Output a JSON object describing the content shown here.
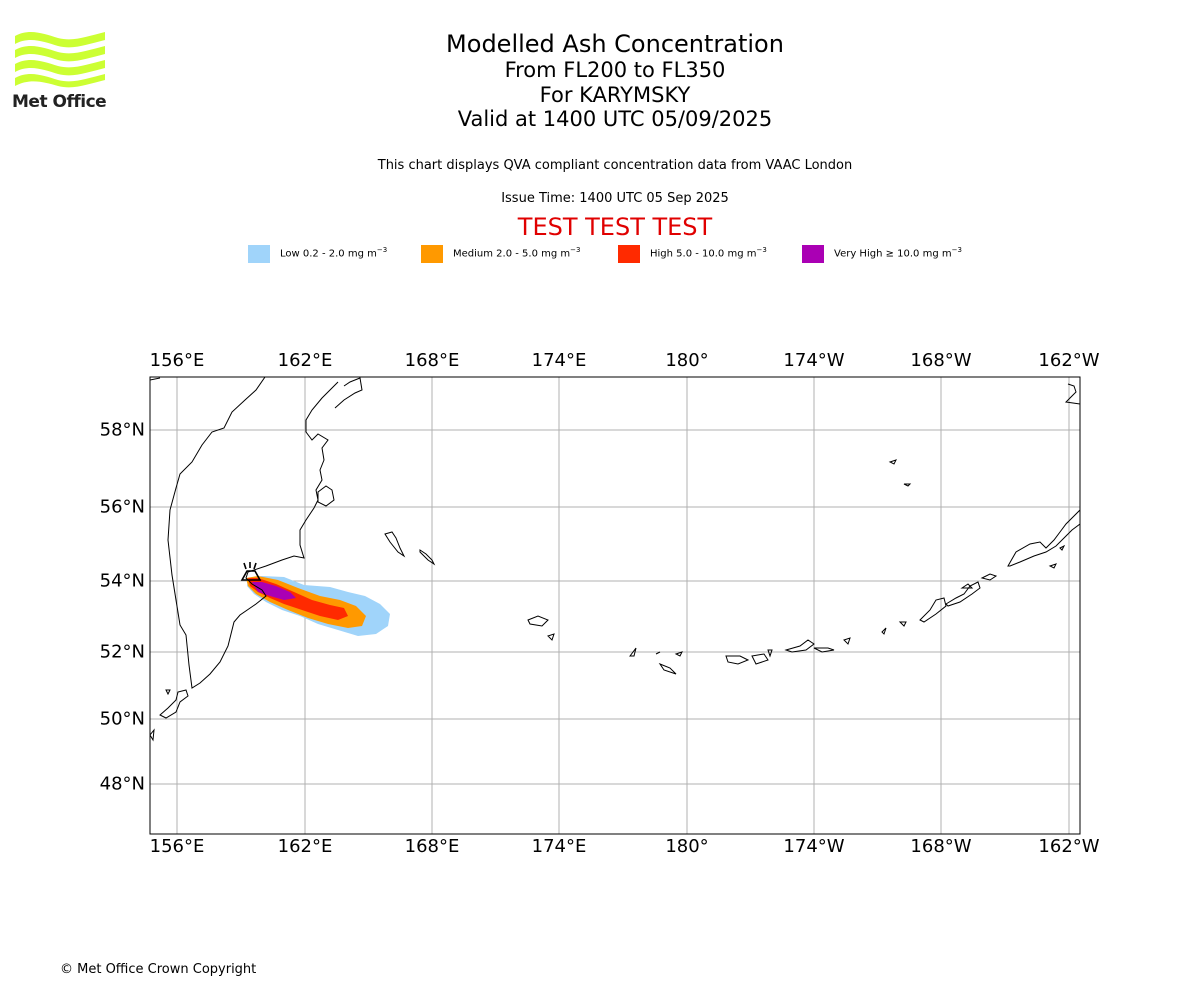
{
  "header": {
    "logo_text": "Met Office",
    "title": "Modelled Ash Concentration",
    "levels": "From FL200 to FL350",
    "volcano": "For KARYMSKY",
    "valid": "Valid at 1400 UTC 05/09/2025",
    "description": "This chart displays QVA compliant concentration data from VAAC London",
    "issue_time": "Issue Time: 1400 UTC 05 Sep 2025",
    "test_banner": "TEST TEST TEST"
  },
  "legend": [
    {
      "label": "Low 0.2 - 2.0 mg m",
      "unit_exp": "−3",
      "color": "#a0d4fa"
    },
    {
      "label": "Medium 2.0 - 5.0 mg m",
      "unit_exp": "−3",
      "color": "#ff9900"
    },
    {
      "label": "High 5.0 - 10.0 mg m",
      "unit_exp": "−3",
      "color": "#ff2a00"
    },
    {
      "label": "Very High  ≥  10.0 mg m",
      "unit_exp": "−3",
      "color": "#aa00b4"
    }
  ],
  "map": {
    "lon_ticks": [
      "156°E",
      "162°E",
      "168°E",
      "174°E",
      "180°",
      "174°W",
      "168°W",
      "162°W"
    ],
    "lat_ticks": [
      "58°N",
      "56°N",
      "54°N",
      "52°N",
      "50°N",
      "48°N"
    ],
    "volcano_symbol": "volcano-icon"
  },
  "footer": {
    "copyright": "© Met Office Crown Copyright"
  }
}
